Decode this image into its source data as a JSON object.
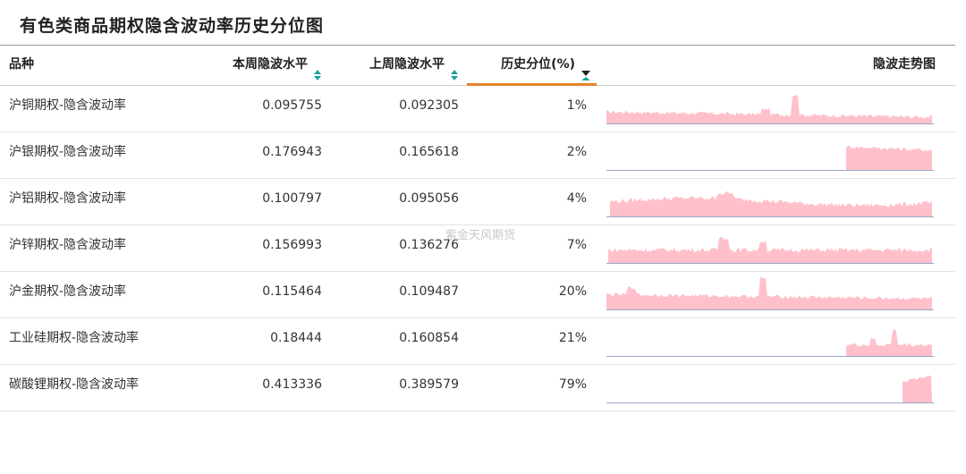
{
  "title": "有色类商品期权隐含波动率历史分位图",
  "watermark": "紫金天风期货",
  "headers": {
    "variety": "品种",
    "current": "本周隐波水平",
    "previous": "上周隐波水平",
    "percentile": "历史分位(%)",
    "trend": "隐波走势图"
  },
  "colors": {
    "sparkline_fill": "#ffc0cb",
    "sparkline_axis": "#9aa7c7",
    "active_sort_underline": "#e8822a",
    "sort_icon": "#1aa39a"
  },
  "rows": [
    {
      "name": "沪铜期权-隐含波动率",
      "current": "0.095755",
      "previous": "0.092305",
      "percentile": "1%"
    },
    {
      "name": "沪银期权-隐含波动率",
      "current": "0.176943",
      "previous": "0.165618",
      "percentile": "2%"
    },
    {
      "name": "沪铝期权-隐含波动率",
      "current": "0.100797",
      "previous": "0.095056",
      "percentile": "4%"
    },
    {
      "name": "沪锌期权-隐含波动率",
      "current": "0.156993",
      "previous": "0.136276",
      "percentile": "7%"
    },
    {
      "name": "沪金期权-隐含波动率",
      "current": "0.115464",
      "previous": "0.109487",
      "percentile": "20%"
    },
    {
      "name": "工业硅期权-隐含波动率",
      "current": "0.18444",
      "previous": "0.160854",
      "percentile": "21%"
    },
    {
      "name": "碳酸锂期权-隐含波动率",
      "current": "0.413336",
      "previous": "0.389579",
      "percentile": "79%"
    }
  ]
}
